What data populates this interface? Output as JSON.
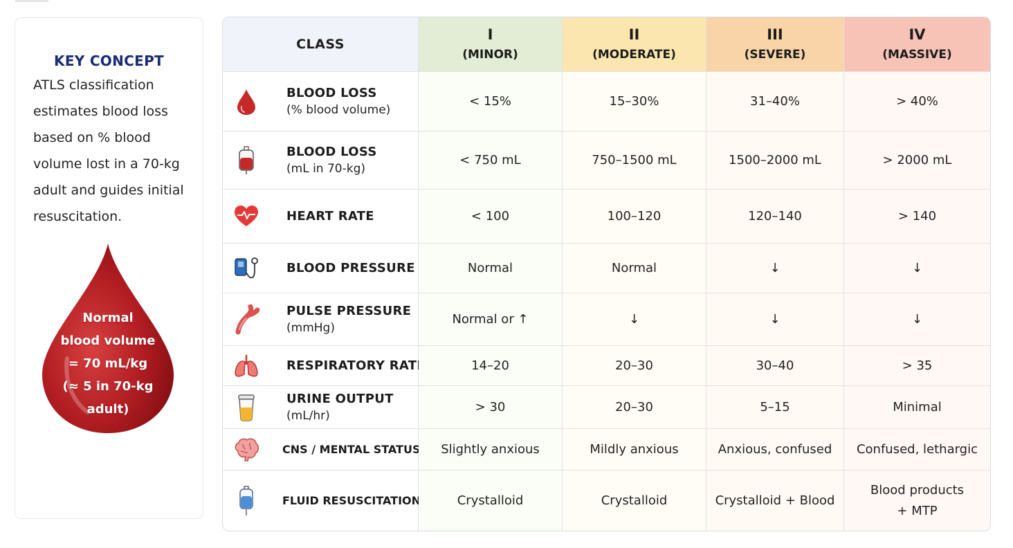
{
  "key_concept": {
    "title": "KEY CONCEPT",
    "description": "ATLS classification estimates blood loss based on % blood volume lost in a 70-kg adult and guides initial resuscitation.",
    "drop_lines": [
      "Normal",
      "blood volume",
      "= 70 mL/kg",
      "(≈ 5 in 70-kg",
      "adult)"
    ]
  },
  "table": {
    "header": {
      "label": "CLASS",
      "classes": [
        {
          "numeral": "I",
          "severity": "(MINOR)"
        },
        {
          "numeral": "II",
          "severity": "(MODERATE)"
        },
        {
          "numeral": "III",
          "severity": "(SEVERE)"
        },
        {
          "numeral": "IV",
          "severity": "(MASSIVE)"
        }
      ]
    },
    "rows": [
      {
        "icon": "blood-drop-icon",
        "label": "BLOOD LOSS",
        "sub": "(% blood volume)",
        "values": [
          "< 15%",
          "15–30%",
          "31–40%",
          "> 40%"
        ]
      },
      {
        "icon": "blood-bag-icon",
        "label": "BLOOD LOSS",
        "sub": "(mL in 70-kg)",
        "values": [
          "< 750 mL",
          "750–1500 mL",
          "1500–2000 mL",
          "> 2000 mL"
        ]
      },
      {
        "icon": "heart-rate-icon",
        "label": "HEART RATE",
        "sub": "",
        "values": [
          "< 100",
          "100–120",
          "120–140",
          "> 140"
        ]
      },
      {
        "icon": "blood-pressure-cuff-icon",
        "label": "BLOOD PRESSURE",
        "sub": "",
        "values": [
          "Normal",
          "Normal",
          "↓",
          "↓"
        ]
      },
      {
        "icon": "artery-icon",
        "label": "PULSE PRESSURE",
        "sub": "(mmHg)",
        "values": [
          "Normal or ↑",
          "↓",
          "↓",
          "↓"
        ]
      },
      {
        "icon": "lungs-icon",
        "label": "RESPIRATORY RATE",
        "sub": "",
        "values": [
          "14–20",
          "20–30",
          "30–40",
          "> 35"
        ]
      },
      {
        "icon": "urine-cup-icon",
        "label": "URINE OUTPUT",
        "sub": "(mL/hr)",
        "values": [
          "> 30",
          "20–30",
          "5–15",
          "Minimal"
        ]
      },
      {
        "icon": "brain-icon",
        "label": "CNS / MENTAL STATUS",
        "sub": "",
        "values": [
          "Slightly anxious",
          "Mildly anxious",
          "Anxious, confused",
          "Confused, lethargic"
        ]
      },
      {
        "icon": "iv-bag-icon",
        "label": "FLUID RESUSCITATION",
        "sub": "",
        "values": [
          "Crystalloid",
          "Crystalloid",
          "Crystalloid + Blood",
          [
            "Blood products",
            "+ MTP"
          ]
        ]
      }
    ]
  },
  "colors": {
    "class_I": "#e3edd5",
    "class_II": "#fbe6b0",
    "class_III": "#f9d4a8",
    "class_IV": "#f8c3b7",
    "accent_red": "#c62828",
    "title_navy": "#1a2a78"
  }
}
